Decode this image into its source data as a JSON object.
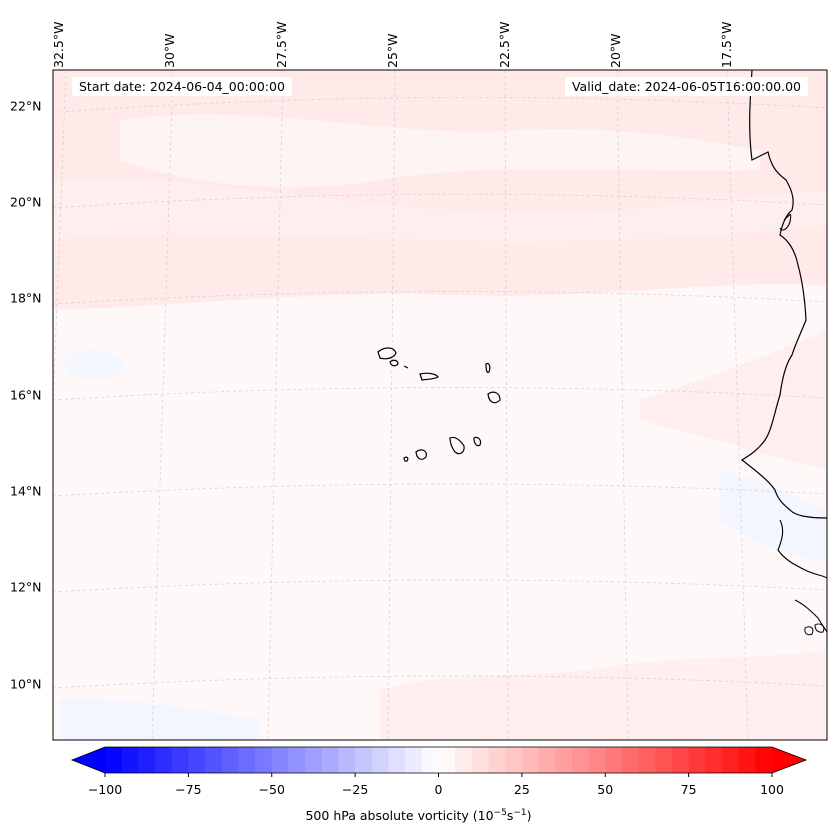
{
  "map": {
    "region": "Eastern tropical Atlantic, Cape Verde and West African coast",
    "projection_note": "conic-style projection, graticule curved",
    "lon_labels": [
      "32.5°W",
      "30°W",
      "27.5°W",
      "25°W",
      "22.5°W",
      "20°W",
      "17.5°W"
    ],
    "lat_labels": [
      "22°N",
      "20°N",
      "18°N",
      "16°N",
      "14°N",
      "12°N",
      "10°N"
    ],
    "start_date": "Start date: 2024-06-04_00:00:00",
    "valid_date": "Valid_date: 2024-06-05T16:00:00.00",
    "field_colors": {
      "light_red": "#ffe5e5",
      "very_light_red": "#fff5f5",
      "very_light_blue": "#f3f5ff",
      "coast": "#000000",
      "grid": "#cccccc"
    }
  },
  "colorbar": {
    "label_prefix": "500 hPa absolute vorticity (10",
    "label_exp1": "−5",
    "label_mid": "s",
    "label_exp2": "−1",
    "label_suffix": ")",
    "min": -100,
    "max": 100,
    "ticks": [
      "−100",
      "−75",
      "−50",
      "−25",
      "0",
      "25",
      "50",
      "75",
      "100"
    ],
    "colormap": "bwr",
    "extend": "both"
  }
}
